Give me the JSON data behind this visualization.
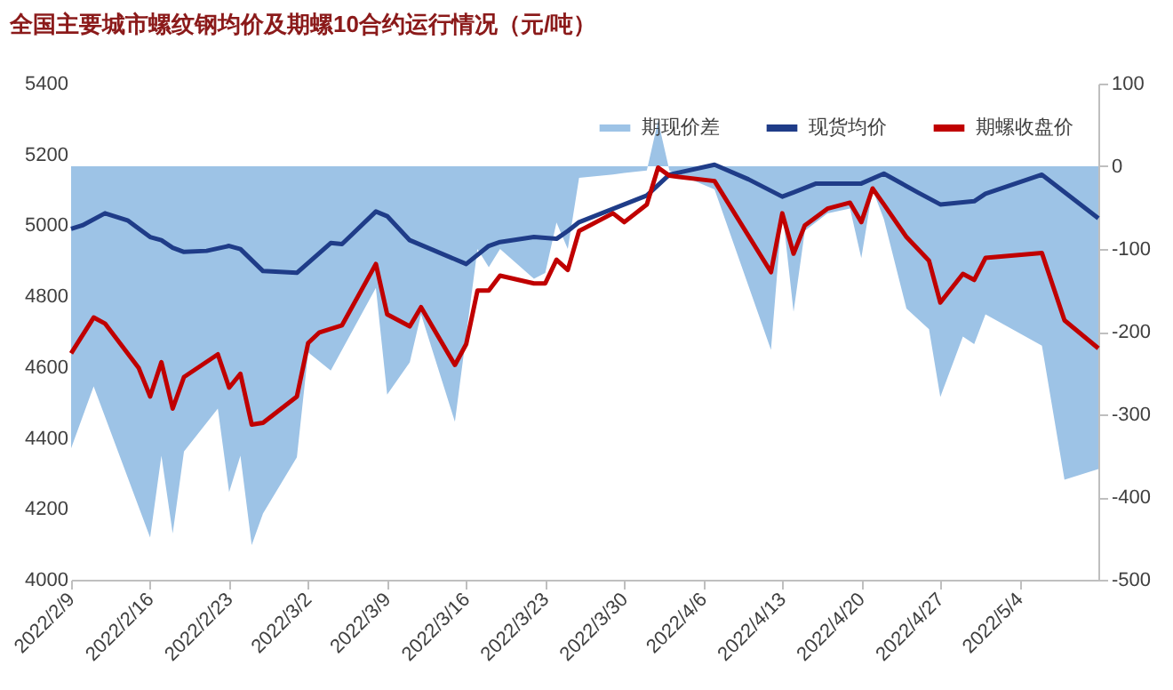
{
  "chart_data": {
    "type": "line",
    "title": "全国主要城市螺纹钢均价及期螺10合约运行情况（元/吨）",
    "xlim": [
      "2022-02-09",
      "2022-05-11"
    ],
    "xticks": [
      {
        "value": "2022-02-09",
        "label": "2022/2/9"
      },
      {
        "value": "2022-02-16",
        "label": "2022/2/16"
      },
      {
        "value": "2022-02-23",
        "label": "2022/2/23"
      },
      {
        "value": "2022-03-02",
        "label": "2022/3/2"
      },
      {
        "value": "2022-03-09",
        "label": "2022/3/9"
      },
      {
        "value": "2022-03-16",
        "label": "2022/3/16"
      },
      {
        "value": "2022-03-23",
        "label": "2022/3/23"
      },
      {
        "value": "2022-03-30",
        "label": "2022/3/30"
      },
      {
        "value": "2022-04-06",
        "label": "2022/4/6"
      },
      {
        "value": "2022-04-13",
        "label": "2022/4/13"
      },
      {
        "value": "2022-04-20",
        "label": "2022/4/20"
      },
      {
        "value": "2022-04-27",
        "label": "2022/4/27"
      },
      {
        "value": "2022-05-04",
        "label": "2022/5/4"
      }
    ],
    "ylim": [
      4000,
      5400
    ],
    "yticks": [
      4000,
      4200,
      4400,
      4600,
      4800,
      5000,
      5200,
      5400
    ],
    "y2lim": [
      -500,
      100
    ],
    "y2ticks": [
      -500,
      -400,
      -300,
      -200,
      -100,
      0,
      100
    ],
    "legend": "top right",
    "grid": false,
    "series": [
      {
        "name": "期现价差",
        "type": "area",
        "axis": "y2",
        "color": "#9dc3e6",
        "x": [
          "2022-02-09",
          "2022-02-11",
          "2022-02-16",
          "2022-02-17",
          "2022-02-18",
          "2022-02-19",
          "2022-02-22",
          "2022-02-23",
          "2022-02-24",
          "2022-02-25",
          "2022-02-26",
          "2022-03-01",
          "2022-03-02",
          "2022-03-04",
          "2022-03-08",
          "2022-03-09",
          "2022-03-11",
          "2022-03-12",
          "2022-03-15",
          "2022-03-17",
          "2022-03-18",
          "2022-03-19",
          "2022-03-22",
          "2022-03-23",
          "2022-03-24",
          "2022-03-25",
          "2022-03-26",
          "2022-03-29",
          "2022-03-30",
          "2022-04-01",
          "2022-04-02",
          "2022-04-03",
          "2022-04-07",
          "2022-04-12",
          "2022-04-13",
          "2022-04-14",
          "2022-04-15",
          "2022-04-17",
          "2022-04-19",
          "2022-04-20",
          "2022-04-21",
          "2022-04-22",
          "2022-04-24",
          "2022-04-26",
          "2022-04-27",
          "2022-04-29",
          "2022-04-30",
          "2022-05-01",
          "2022-05-06",
          "2022-05-08",
          "2022-05-11"
        ],
        "values": [
          -341,
          -266,
          -449,
          -350,
          -444,
          -345,
          -293,
          -394,
          -350,
          -458,
          -420,
          -352,
          -225,
          -247,
          -147,
          -276,
          -237,
          -179,
          -309,
          -100,
          -122,
          -100,
          -136,
          -129,
          -68,
          -100,
          -14,
          -10,
          -8,
          -5,
          55,
          -5,
          -28,
          -222,
          -53,
          -176,
          -78,
          -57,
          -51,
          -111,
          -28,
          -64,
          -172,
          -197,
          -279,
          -206,
          -215,
          -179,
          -217,
          -379,
          -366
        ]
      },
      {
        "name": "现货均价",
        "color": "#1f3c88",
        "x": [
          "2022-02-09",
          "2022-02-10",
          "2022-02-12",
          "2022-02-14",
          "2022-02-16",
          "2022-02-17",
          "2022-02-18",
          "2022-02-19",
          "2022-02-21",
          "2022-02-23",
          "2022-02-24",
          "2022-02-26",
          "2022-03-01",
          "2022-03-04",
          "2022-03-05",
          "2022-03-08",
          "2022-03-09",
          "2022-03-11",
          "2022-03-16",
          "2022-03-18",
          "2022-03-19",
          "2022-03-22",
          "2022-03-24",
          "2022-03-25",
          "2022-03-26",
          "2022-03-30",
          "2022-04-01",
          "2022-04-03",
          "2022-04-07",
          "2022-04-10",
          "2022-04-13",
          "2022-04-14",
          "2022-04-16",
          "2022-04-20",
          "2022-04-22",
          "2022-04-25",
          "2022-04-27",
          "2022-04-30",
          "2022-05-01",
          "2022-05-06",
          "2022-05-11"
        ],
        "values": [
          4990,
          5000,
          5034,
          5014,
          4967,
          4958,
          4937,
          4925,
          4928,
          4942,
          4933,
          4871,
          4866,
          4950,
          4947,
          5039,
          5026,
          4958,
          4891,
          4942,
          4953,
          4967,
          4962,
          4984,
          5009,
          5059,
          5084,
          5143,
          5171,
          5130,
          5081,
          5093,
          5118,
          5118,
          5146,
          5093,
          5059,
          5068,
          5089,
          5143,
          5020
        ]
      },
      {
        "name": "期螺收盘价",
        "color": "#c00000",
        "x": [
          "2022-02-09",
          "2022-02-11",
          "2022-02-12",
          "2022-02-15",
          "2022-02-16",
          "2022-02-17",
          "2022-02-18",
          "2022-02-19",
          "2022-02-22",
          "2022-02-23",
          "2022-02-24",
          "2022-02-25",
          "2022-02-26",
          "2022-03-01",
          "2022-03-02",
          "2022-03-03",
          "2022-03-05",
          "2022-03-08",
          "2022-03-09",
          "2022-03-11",
          "2022-03-12",
          "2022-03-15",
          "2022-03-16",
          "2022-03-17",
          "2022-03-18",
          "2022-03-19",
          "2022-03-22",
          "2022-03-23",
          "2022-03-24",
          "2022-03-25",
          "2022-03-26",
          "2022-03-29",
          "2022-03-30",
          "2022-04-01",
          "2022-04-02",
          "2022-04-03",
          "2022-04-07",
          "2022-04-12",
          "2022-04-13",
          "2022-04-14",
          "2022-04-15",
          "2022-04-17",
          "2022-04-19",
          "2022-04-20",
          "2022-04-21",
          "2022-04-22",
          "2022-04-24",
          "2022-04-26",
          "2022-04-27",
          "2022-04-29",
          "2022-04-30",
          "2022-05-01",
          "2022-05-06",
          "2022-05-08",
          "2022-05-11"
        ],
        "values": [
          4639,
          4740,
          4723,
          4597,
          4517,
          4614,
          4483,
          4572,
          4636,
          4542,
          4581,
          4438,
          4443,
          4517,
          4668,
          4698,
          4718,
          4891,
          4749,
          4715,
          4769,
          4606,
          4665,
          4816,
          4816,
          4858,
          4836,
          4836,
          4903,
          4874,
          4984,
          5034,
          5009,
          5059,
          5163,
          5140,
          5125,
          4868,
          5034,
          4920,
          5000,
          5047,
          5064,
          5009,
          5104,
          5059,
          4967,
          4900,
          4782,
          4863,
          4846,
          4908,
          4922,
          4732,
          4653
        ]
      }
    ]
  }
}
